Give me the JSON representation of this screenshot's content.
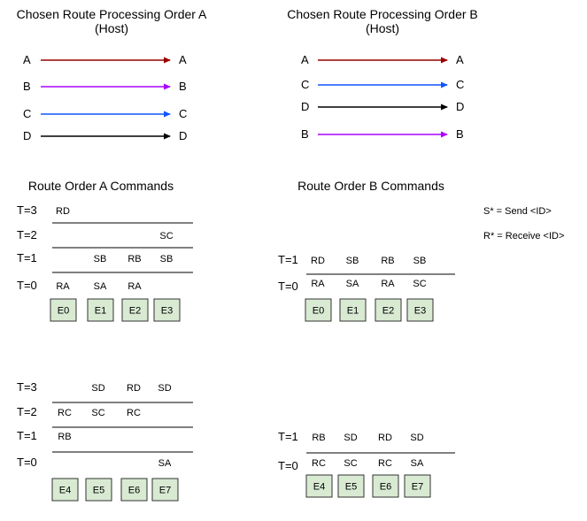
{
  "colors": {
    "A": "#990000",
    "B": "#aa00ff",
    "C": "#1155ff",
    "D": "#000000",
    "node_fill": "#d9ead3",
    "line": "#000000"
  },
  "route_orders": [
    {
      "title": [
        "Chosen Route Processing Order A",
        "(Host)"
      ],
      "routes": [
        {
          "from": "A",
          "to": "A",
          "color": "A"
        },
        {
          "from": "B",
          "to": "B",
          "color": "B"
        },
        {
          "from": "C",
          "to": "C",
          "color": "C"
        },
        {
          "from": "D",
          "to": "D",
          "color": "D"
        }
      ]
    },
    {
      "title": [
        "Chosen Route Processing Order B",
        "(Host)"
      ],
      "routes": [
        {
          "from": "A",
          "to": "A",
          "color": "A"
        },
        {
          "from": "C",
          "to": "C",
          "color": "C"
        },
        {
          "from": "D",
          "to": "D",
          "color": "D"
        },
        {
          "from": "B",
          "to": "B",
          "color": "B"
        }
      ]
    }
  ],
  "command_titles": [
    "Route Order A Commands",
    "Route Order B Commands"
  ],
  "legend": [
    "S* = Send <ID>",
    "R* = Receive <ID>"
  ],
  "command_grids": [
    {
      "row_labels": [
        "T=3",
        "T=2",
        "T=1",
        "T=0"
      ],
      "cells": [
        [
          "RD",
          "",
          "",
          ""
        ],
        [
          "",
          "",
          "",
          "SC"
        ],
        [
          "",
          "SB",
          "RB",
          "SB"
        ],
        [
          "RA",
          "SA",
          "RA",
          ""
        ]
      ],
      "nodes": [
        "E0",
        "E1",
        "E2",
        "E3"
      ]
    },
    {
      "row_labels": [
        "T=1",
        "T=0"
      ],
      "cells": [
        [
          "RD",
          "SB",
          "RB",
          "SB"
        ],
        [
          "RA",
          "SA",
          "RA",
          "SC"
        ]
      ],
      "nodes": [
        "E0",
        "E1",
        "E2",
        "E3"
      ]
    },
    {
      "row_labels": [
        "T=3",
        "T=2",
        "T=1",
        "T=0"
      ],
      "cells": [
        [
          "",
          "SD",
          "RD",
          "SD"
        ],
        [
          "RC",
          "SC",
          "RC",
          ""
        ],
        [
          "RB",
          "",
          "",
          ""
        ],
        [
          "",
          "",
          "",
          "SA"
        ]
      ],
      "nodes": [
        "E4",
        "E5",
        "E6",
        "E7"
      ]
    },
    {
      "row_labels": [
        "T=1",
        "T=0"
      ],
      "cells": [
        [
          "RB",
          "SD",
          "RD",
          "SD"
        ],
        [
          "RC",
          "SC",
          "RC",
          "SA"
        ]
      ],
      "nodes": [
        "E4",
        "E5",
        "E6",
        "E7"
      ]
    }
  ]
}
